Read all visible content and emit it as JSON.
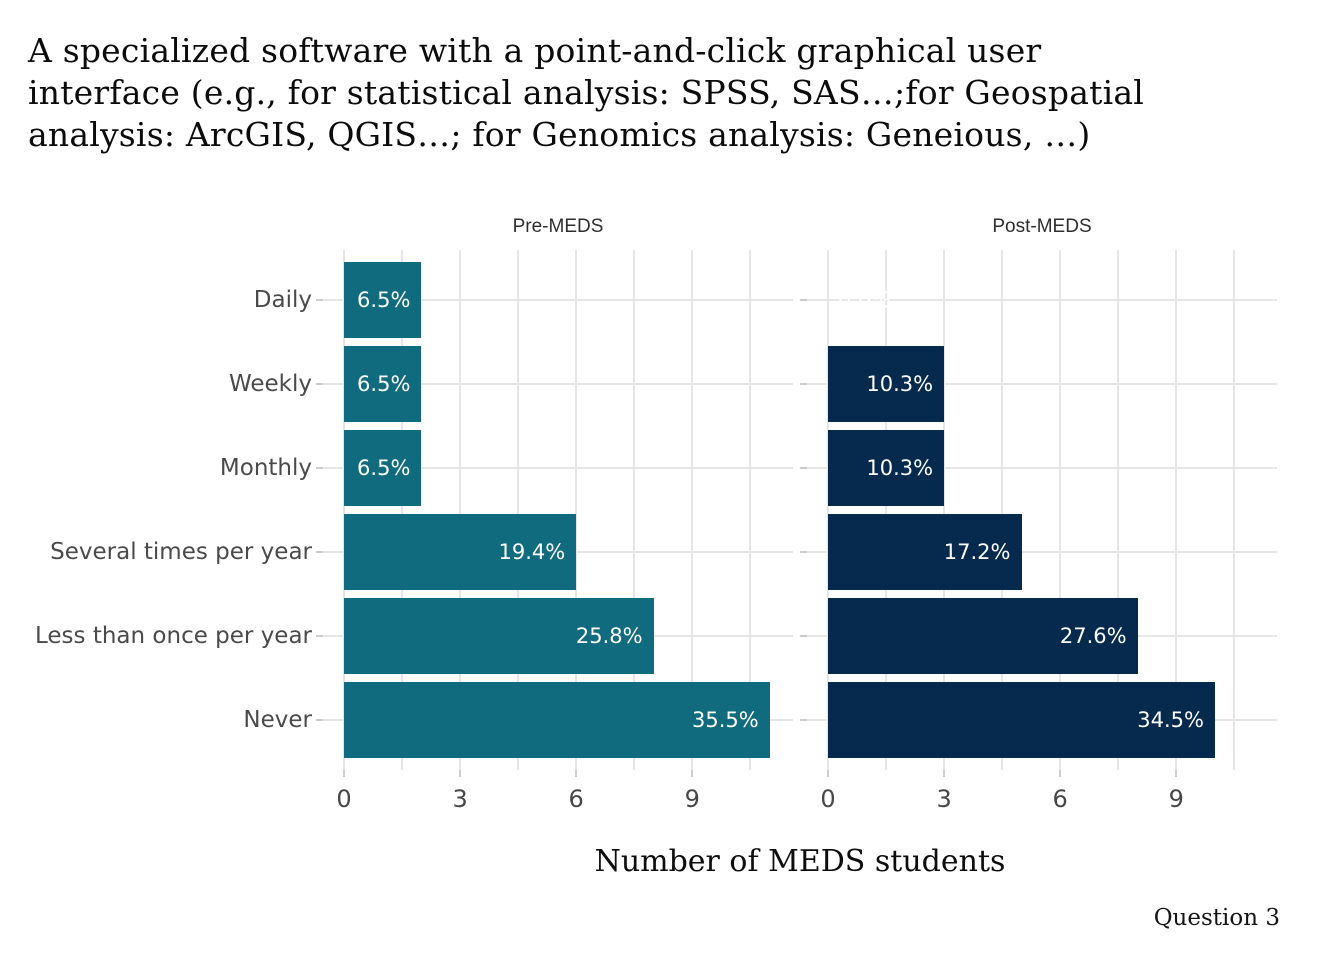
{
  "title_lines": [
    "A specialized software with a point-and-click graphical user",
    "interface (e.g., for statistical analysis: SPSS, SAS…;for Geospatial",
    "analysis: ArcGIS, QGIS…; for Genomics analysis: Geneious, …)"
  ],
  "chart_data": {
    "type": "bar",
    "orientation": "horizontal",
    "categories": [
      "Daily",
      "Weekly",
      "Monthly",
      "Several times per year",
      "Less than once per year",
      "Never"
    ],
    "facets": [
      {
        "label": "Pre-MEDS",
        "bar_color": "#116b7e",
        "values": [
          2,
          2,
          2,
          6,
          8,
          11
        ],
        "value_labels": [
          "6.5%",
          "6.5%",
          "6.5%",
          "19.4%",
          "25.8%",
          "35.5%"
        ]
      },
      {
        "label": "Post-MEDS",
        "bar_color": "#062a4d",
        "values": [
          0,
          3,
          3,
          5,
          8,
          10
        ],
        "value_labels": [
          "0.0%",
          "10.3%",
          "10.3%",
          "17.2%",
          "27.6%",
          "34.5%"
        ]
      }
    ],
    "xlabel": "Number of MEDS students",
    "ylabel": "",
    "x_ticks": [
      0,
      3,
      6,
      9
    ],
    "x_minor_ticks": [
      1.5,
      4.5,
      7.5,
      10.5
    ],
    "xlim": [
      0,
      11.6
    ],
    "grid": true,
    "legend": "none",
    "label_text_color": "#ffffff",
    "caption": "Question 3"
  }
}
